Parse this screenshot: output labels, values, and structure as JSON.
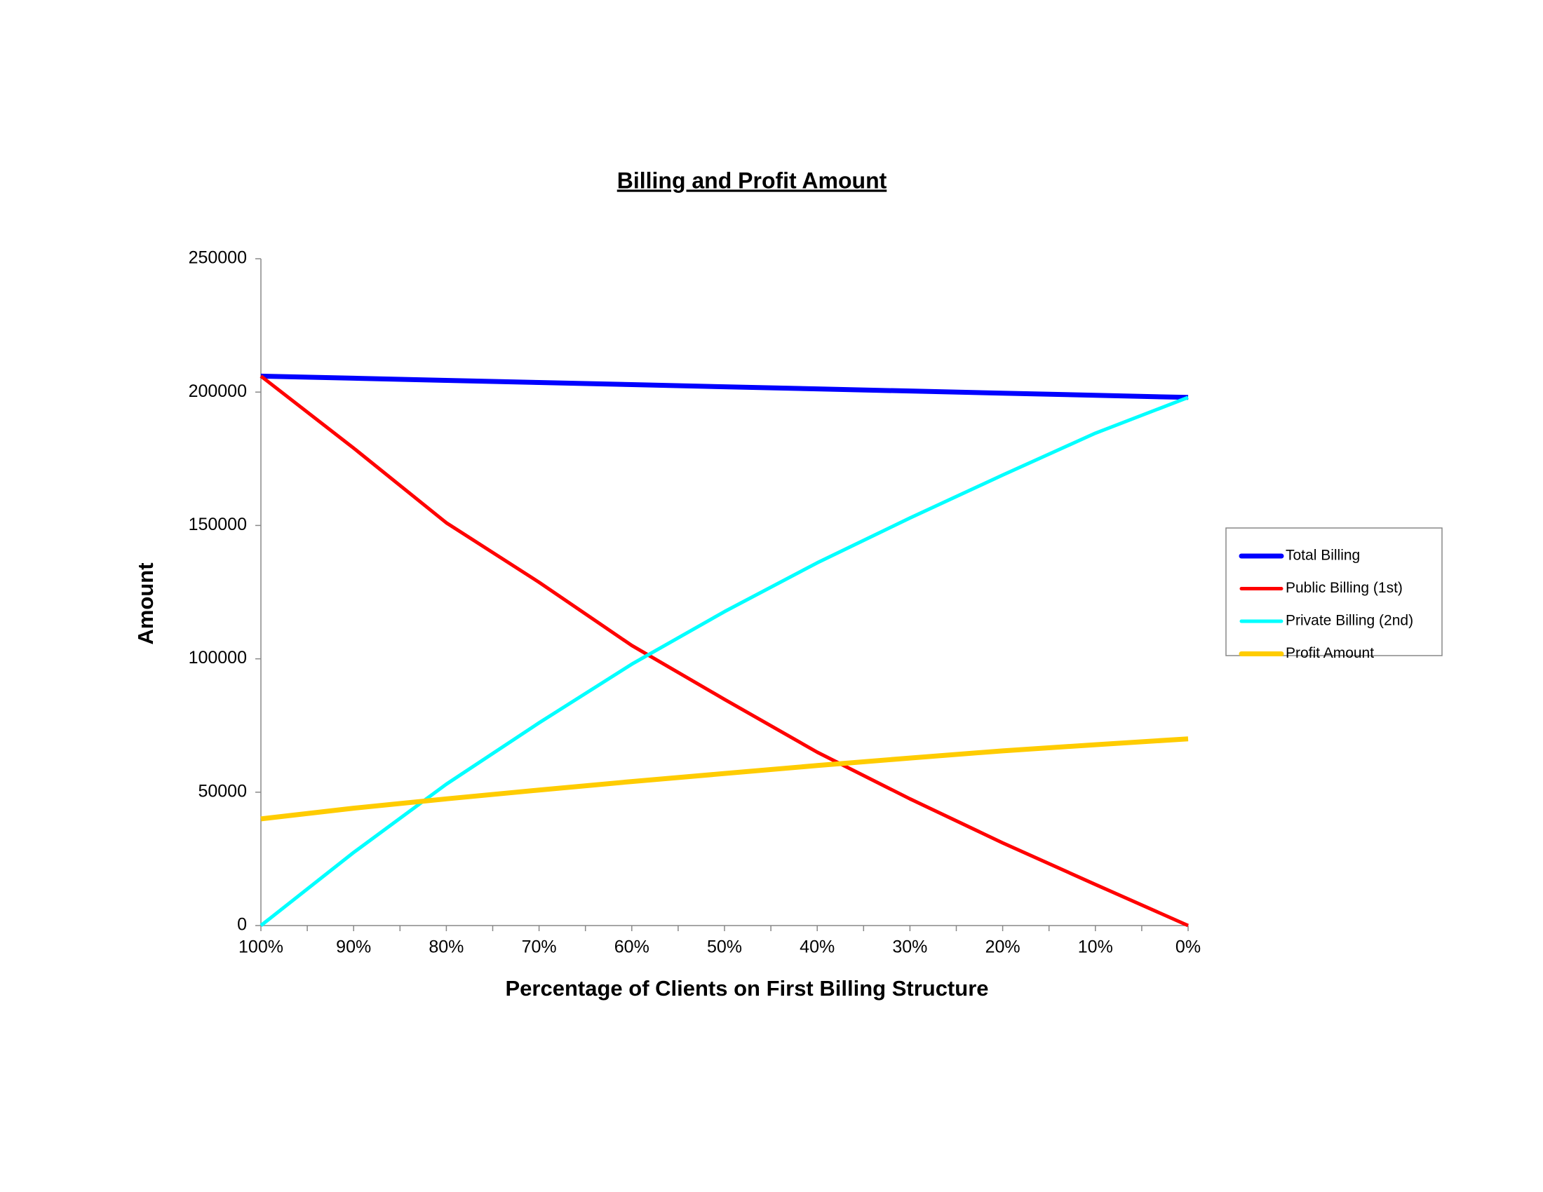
{
  "chart_data": {
    "type": "line",
    "title": "Billing and Profit Amount",
    "x_label": "Percentage of Clients on First Billing Structure",
    "y_label": "Amount",
    "categories": [
      "100%",
      "90%",
      "80%",
      "70%",
      "60%",
      "50%",
      "40%",
      "30%",
      "20%",
      "10%",
      "0%"
    ],
    "series": [
      {
        "name": "Total Billing",
        "color": "#0000ff",
        "values": [
          206000,
          205200,
          204400,
          203600,
          202800,
          202000,
          201200,
          200400,
          199600,
          198800,
          198000
        ]
      },
      {
        "name": "Public Billing (1st)",
        "color": "#ff0000",
        "values": [
          206000,
          179000,
          151000,
          128700,
          105000,
          84800,
          65000,
          47500,
          31000,
          15400,
          0
        ]
      },
      {
        "name": "Private Billing (2nd)",
        "color": "#00ffff",
        "values": [
          0,
          27400,
          53000,
          76000,
          98000,
          117700,
          136000,
          152800,
          168900,
          184600,
          198000
        ]
      },
      {
        "name": "Profit Amount",
        "color": "#ffcc00",
        "values": [
          40000,
          44000,
          47500,
          50800,
          54000,
          57000,
          60000,
          62800,
          65500,
          67800,
          70000
        ]
      }
    ],
    "ylim": [
      0,
      250000
    ],
    "yticks": [
      0,
      50000,
      100000,
      150000,
      200000,
      250000
    ],
    "legend": "right"
  }
}
